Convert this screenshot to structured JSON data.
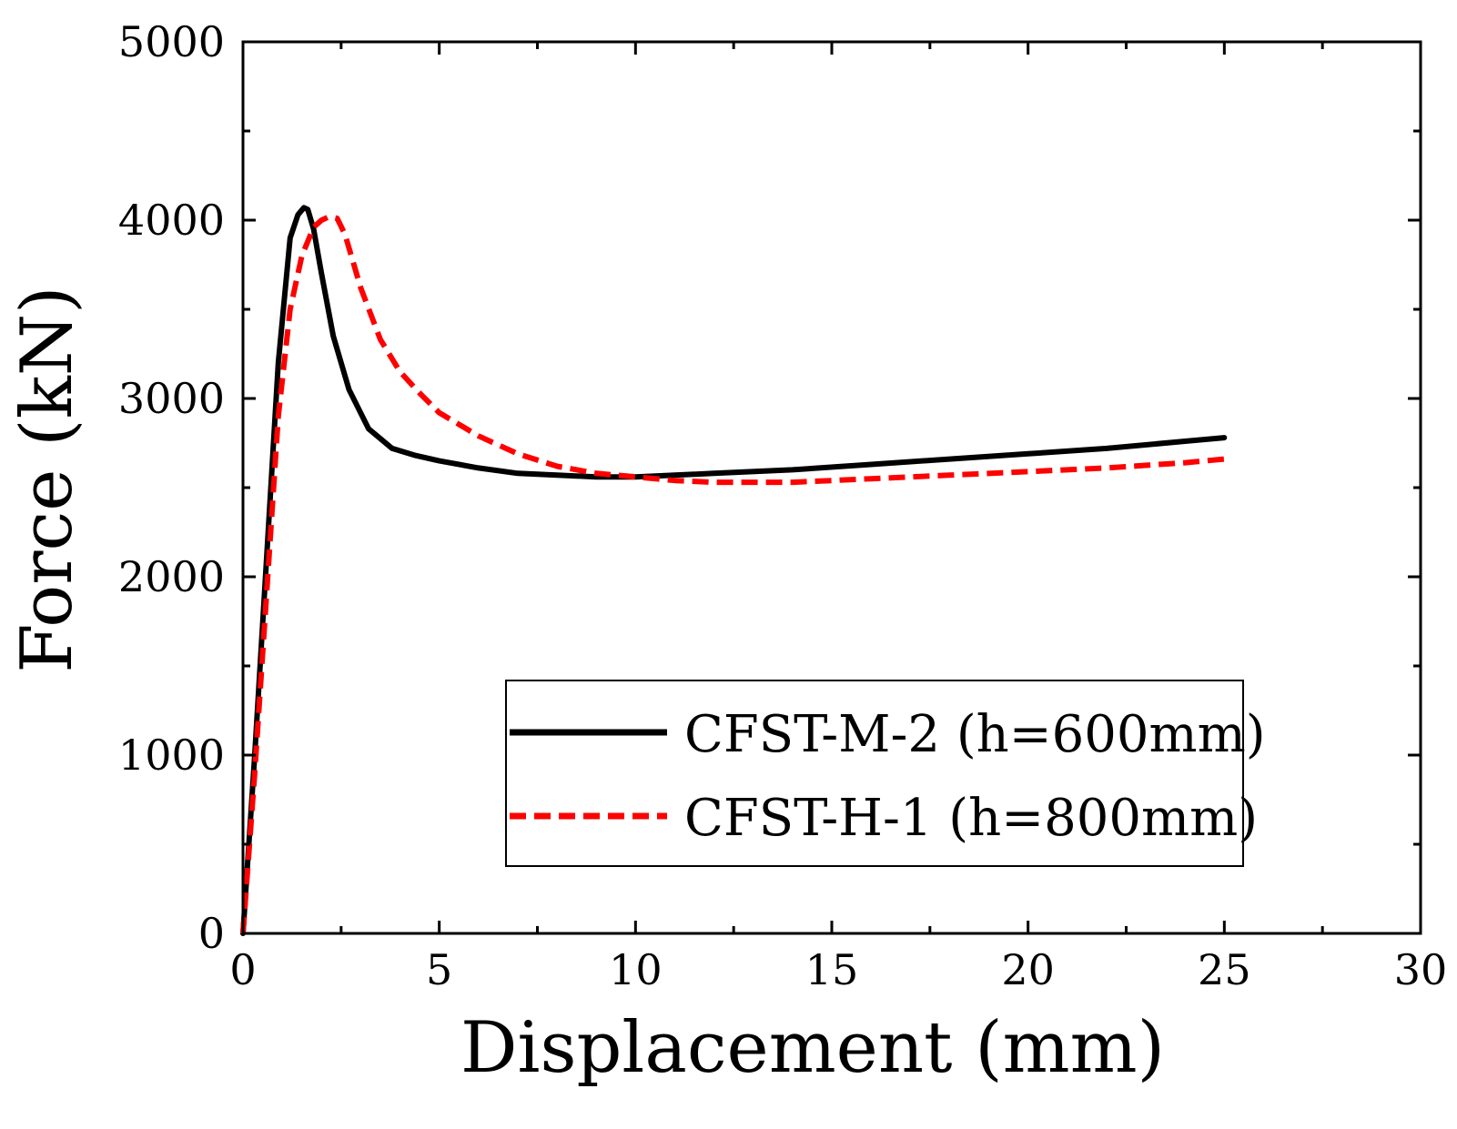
{
  "chart_data": {
    "type": "line",
    "title": "",
    "xlabel": "Displacement (mm)",
    "ylabel": "Force (kN)",
    "xlim": [
      0,
      30
    ],
    "ylim": [
      0,
      5000
    ],
    "xticks": [
      0,
      5,
      10,
      15,
      20,
      25,
      30
    ],
    "yticks": [
      0,
      1000,
      2000,
      3000,
      4000,
      5000
    ],
    "xtick_labels": [
      "0",
      "5",
      "10",
      "15",
      "20",
      "25",
      "30"
    ],
    "ytick_labels": [
      "0",
      "1000",
      "2000",
      "3000",
      "4000",
      "5000"
    ],
    "grid": false,
    "legend_position": "bottom-right",
    "series": [
      {
        "name": "CFST-M-2 (h=600mm)",
        "color": "#000000",
        "style": "solid",
        "x": [
          0,
          0.3,
          0.6,
          0.9,
          1.2,
          1.4,
          1.55,
          1.65,
          1.8,
          2.0,
          2.3,
          2.7,
          3.2,
          3.8,
          4.4,
          5.0,
          6.0,
          7.0,
          8.0,
          9.0,
          10.0,
          11.0,
          12.0,
          14.0,
          16.0,
          18.0,
          20.0,
          22.0,
          24.0,
          25.0
        ],
        "y": [
          0,
          1000,
          2100,
          3200,
          3900,
          4030,
          4070,
          4060,
          3950,
          3700,
          3350,
          3050,
          2830,
          2720,
          2680,
          2650,
          2610,
          2580,
          2570,
          2560,
          2560,
          2570,
          2580,
          2600,
          2630,
          2660,
          2690,
          2720,
          2760,
          2780
        ]
      },
      {
        "name": "CFST-H-1 (h=800mm)",
        "color": "#ff0000",
        "style": "dashed",
        "x": [
          0,
          0.3,
          0.6,
          0.9,
          1.2,
          1.5,
          1.8,
          2.0,
          2.2,
          2.4,
          2.6,
          3.0,
          3.5,
          4.0,
          4.5,
          5.0,
          6.0,
          7.0,
          8.0,
          9.0,
          10.0,
          11.0,
          12.0,
          13.0,
          14.0,
          15.0,
          16.0,
          18.0,
          20.0,
          22.0,
          24.0,
          25.0
        ],
        "y": [
          0,
          900,
          1900,
          2900,
          3500,
          3800,
          3960,
          4000,
          4020,
          4010,
          3920,
          3620,
          3330,
          3150,
          3030,
          2920,
          2790,
          2690,
          2620,
          2580,
          2560,
          2540,
          2530,
          2530,
          2530,
          2540,
          2550,
          2570,
          2590,
          2610,
          2640,
          2660
        ]
      }
    ]
  }
}
